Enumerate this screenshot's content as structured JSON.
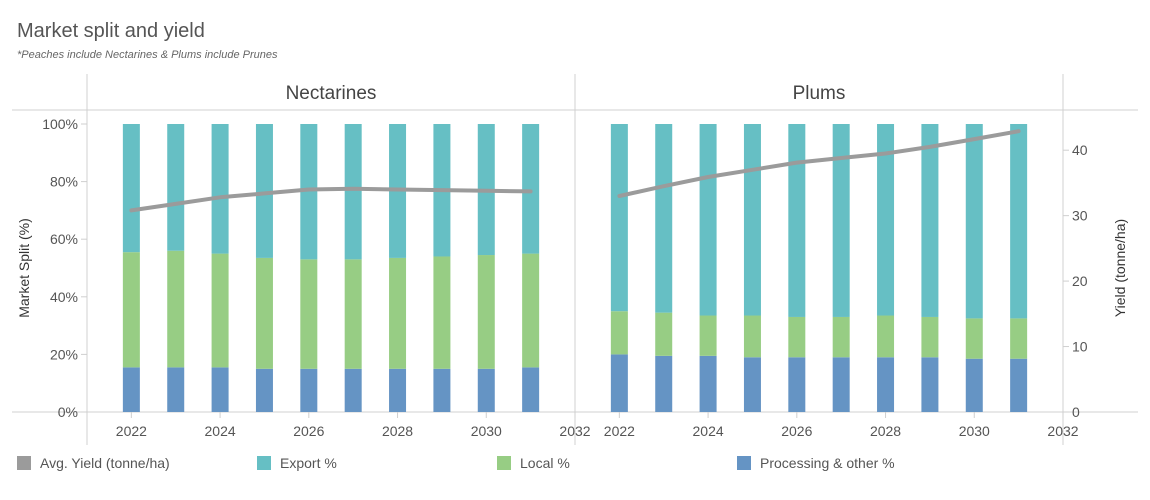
{
  "title": "Market split and yield",
  "subtitle": "*Peaches include Nectarines & Plums include Prunes",
  "chart_data": {
    "type": "bar",
    "panels": [
      {
        "name": "Nectarines",
        "years": [
          2022,
          2023,
          2024,
          2025,
          2026,
          2027,
          2028,
          2029,
          2030,
          2031
        ],
        "series": [
          {
            "name": "Processing & other %",
            "values": [
              15.5,
              15.5,
              15.5,
              15.0,
              15.0,
              15.0,
              15.0,
              15.0,
              15.0,
              15.5
            ]
          },
          {
            "name": "Local %",
            "values": [
              40.0,
              40.5,
              39.5,
              38.5,
              38.0,
              38.0,
              38.5,
              39.0,
              39.5,
              39.5
            ]
          },
          {
            "name": "Export %",
            "values": [
              44.5,
              44.0,
              45.0,
              46.5,
              47.0,
              47.0,
              46.5,
              46.0,
              45.5,
              45.0
            ]
          }
        ],
        "yield": [
          30.8,
          31.8,
          32.8,
          33.4,
          34.0,
          34.1,
          34.0,
          33.9,
          33.8,
          33.7
        ]
      },
      {
        "name": "Plums",
        "years": [
          2022,
          2023,
          2024,
          2025,
          2026,
          2027,
          2028,
          2029,
          2030,
          2031
        ],
        "series": [
          {
            "name": "Processing & other %",
            "values": [
              20.0,
              19.5,
              19.5,
              19.0,
              19.0,
              19.0,
              19.0,
              19.0,
              18.5,
              18.5
            ]
          },
          {
            "name": "Local %",
            "values": [
              15.0,
              15.0,
              14.0,
              14.5,
              14.0,
              14.0,
              14.5,
              14.0,
              14.0,
              14.0
            ]
          },
          {
            "name": "Export %",
            "values": [
              65.0,
              65.5,
              66.5,
              66.5,
              67.0,
              67.0,
              66.5,
              67.0,
              67.5,
              67.5
            ]
          }
        ],
        "yield": [
          33.0,
          34.5,
          35.9,
          37.0,
          38.1,
          38.8,
          39.5,
          40.5,
          41.7,
          42.9
        ]
      }
    ],
    "xlim": [
      2021,
      2032
    ],
    "x_ticks": [
      "2022",
      "2024",
      "2026",
      "2028",
      "2030",
      "2032"
    ],
    "left_axis": {
      "label": "Market Split (%)",
      "ylim": [
        0,
        100
      ],
      "ticks": [
        "0%",
        "20%",
        "40%",
        "60%",
        "80%",
        "100%"
      ]
    },
    "right_axis": {
      "label": "Yield (tonne/ha)",
      "ylim": [
        0,
        44
      ],
      "ticks": [
        "0",
        "10",
        "20",
        "30",
        "40"
      ]
    },
    "legend_position": "bottom"
  },
  "legend": [
    {
      "label": "Avg. Yield (tonne/ha)",
      "color": "#9b9b9b"
    },
    {
      "label": "Export %",
      "color": "#66bfc4"
    },
    {
      "label": "Local %",
      "color": "#97cd84"
    },
    {
      "label": "Processing & other %",
      "color": "#6594c4"
    }
  ]
}
